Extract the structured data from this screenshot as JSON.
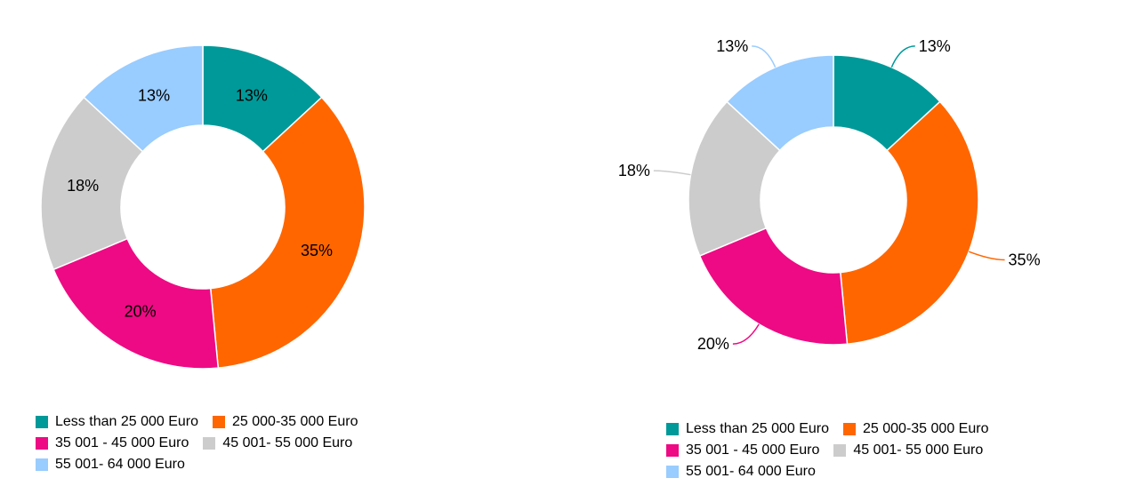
{
  "chart_data": [
    {
      "type": "donut",
      "label_style": "inside",
      "categories": [
        "Less than 25 000 Euro",
        "25 000-35 000 Euro",
        "35 001 - 45 000 Euro",
        "45 001- 55 000 Euro",
        "55 001- 64 000 Euro"
      ],
      "values": [
        13,
        35,
        20,
        18,
        13
      ],
      "value_labels": [
        "13%",
        "35%",
        "20%",
        "18%",
        "13%"
      ],
      "colors": [
        "#009999",
        "#FF6600",
        "#EE0A84",
        "#CCCCCC",
        "#99CCFF"
      ],
      "legend": "bottom-left"
    },
    {
      "type": "donut",
      "label_style": "outside-leader-lines",
      "categories": [
        "Less than 25 000 Euro",
        "25 000-35 000 Euro",
        "35 001 - 45 000 Euro",
        "45 001- 55 000 Euro",
        "55 001- 64 000 Euro"
      ],
      "values": [
        13,
        35,
        20,
        18,
        13
      ],
      "value_labels": [
        "13%",
        "35%",
        "20%",
        "18%",
        "13%"
      ],
      "colors": [
        "#009999",
        "#FF6600",
        "#EE0A84",
        "#CCCCCC",
        "#99CCFF"
      ],
      "legend": "bottom-left"
    }
  ]
}
